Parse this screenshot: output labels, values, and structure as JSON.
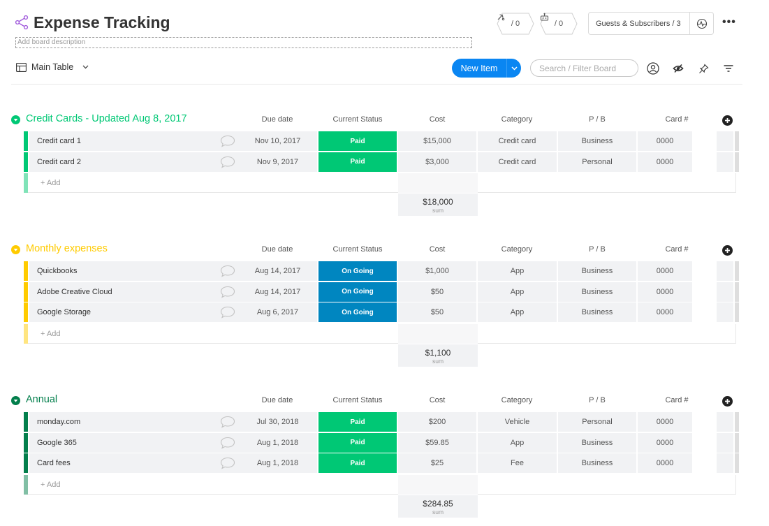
{
  "board": {
    "title": "Expense Tracking",
    "description_placeholder": "Add board description",
    "accent_color": "#a25ddc"
  },
  "header": {
    "updates_count": "/ 0",
    "activity_count": "/ 0",
    "guests_label": "Guests & Subscribers / 3",
    "more_symbol": "•••"
  },
  "toolbar": {
    "view_label": "Main Table",
    "new_item_label": "New Item",
    "search_placeholder": "Search / Filter Board"
  },
  "columns": [
    "Due date",
    "Current Status",
    "Cost",
    "Category",
    "P / B",
    "Card #"
  ],
  "add_label": "+ Add",
  "sum_label": "sum",
  "status_colors": {
    "Paid": "#00c875",
    "On Going": "#0086c0"
  },
  "groups": [
    {
      "title": "Credit Cards - Updated Aug 8, 2017",
      "color": "#00c875",
      "add_bar_color": "#80e3b8",
      "sum": "$18,000",
      "rows": [
        {
          "name": "Credit card 1",
          "due": "Nov 10, 2017",
          "status": "Paid",
          "cost": "$15,000",
          "category": "Credit card",
          "pb": "Business",
          "card": "0000"
        },
        {
          "name": "Credit card 2",
          "due": "Nov 9, 2017",
          "status": "Paid",
          "cost": "$3,000",
          "category": "Credit card",
          "pb": "Personal",
          "card": "0000"
        }
      ]
    },
    {
      "title": "Monthly expenses",
      "color": "#ffcb00",
      "add_bar_color": "#ffe580",
      "sum": "$1,100",
      "rows": [
        {
          "name": "Quickbooks",
          "due": "Aug 14, 2017",
          "status": "On Going",
          "cost": "$1,000",
          "category": "App",
          "pb": "Business",
          "card": "0000"
        },
        {
          "name": "Adobe Creative Cloud",
          "due": "Aug 14, 2017",
          "status": "On Going",
          "cost": "$50",
          "category": "App",
          "pb": "Business",
          "card": "0000"
        },
        {
          "name": "Google Storage",
          "due": "Aug 6, 2017",
          "status": "On Going",
          "cost": "$50",
          "category": "App",
          "pb": "Business",
          "card": "0000"
        }
      ]
    },
    {
      "title": "Annual",
      "color": "#037f4c",
      "add_bar_color": "#81bfa5",
      "sum": "$284.85",
      "rows": [
        {
          "name": "monday.com",
          "due": "Jul 30, 2018",
          "status": "Paid",
          "cost": "$200",
          "category": "Vehicle",
          "pb": "Personal",
          "card": "0000"
        },
        {
          "name": "Google 365",
          "due": "Aug 1, 2018",
          "status": "Paid",
          "cost": "$59.85",
          "category": "App",
          "pb": "Business",
          "card": "0000"
        },
        {
          "name": "Card fees",
          "due": "Aug 1, 2018",
          "status": "Paid",
          "cost": "$25",
          "category": "Fee",
          "pb": "Business",
          "card": "0000"
        }
      ]
    }
  ]
}
